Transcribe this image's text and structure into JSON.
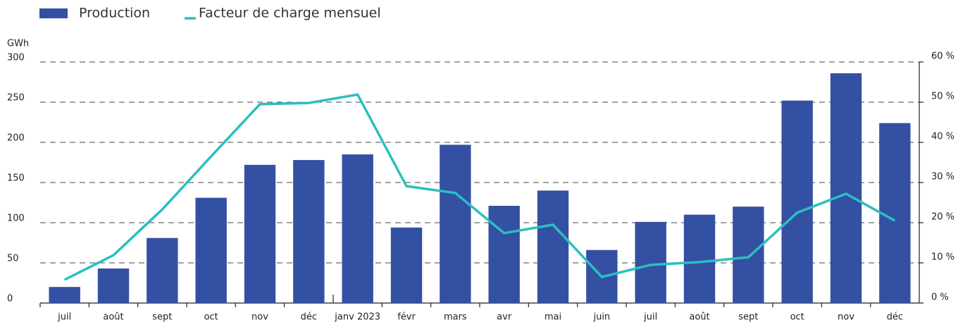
{
  "chart_data": {
    "type": "bar_line",
    "y_label": "GWh",
    "categories": [
      "juil",
      "août",
      "sept",
      "oct",
      "nov",
      "déc",
      "janv 2023",
      "févr",
      "mars",
      "avr",
      "mai",
      "juin",
      "juil",
      "août",
      "sept",
      "oct",
      "nov",
      "déc"
    ],
    "series": [
      {
        "name": "Production",
        "type": "bar",
        "color": "#3350a3",
        "values": [
          20,
          43,
          81,
          131,
          172,
          178,
          185,
          94,
          197,
          121,
          140,
          66,
          101,
          110,
          120,
          252,
          286,
          224
        ]
      },
      {
        "name": "Facteur de charge mensuel",
        "type": "line",
        "axis": "y2",
        "color": "#2bbfbf",
        "values": [
          5.8,
          11.9,
          23.3,
          36.5,
          49.5,
          49.8,
          51.9,
          29.1,
          27.4,
          17.4,
          19.5,
          6.5,
          9.5,
          10.2,
          11.4,
          22.5,
          27.2,
          20.5
        ]
      }
    ],
    "ylim": [
      0,
      300
    ],
    "yticks": [
      0,
      50,
      100,
      150,
      200,
      250,
      300
    ],
    "y2lim": [
      0,
      60
    ],
    "y2ticks": [
      {
        "value": 0,
        "label": "0 %"
      },
      {
        "value": 10,
        "label": "10 %"
      },
      {
        "value": 20,
        "label": "20 %"
      },
      {
        "value": 30,
        "label": "30 %"
      },
      {
        "value": 40,
        "label": "40 %"
      },
      {
        "value": 50,
        "label": "50 %"
      },
      {
        "value": 60,
        "label": "60 %"
      }
    ],
    "grid": true,
    "legend": "top-left"
  }
}
